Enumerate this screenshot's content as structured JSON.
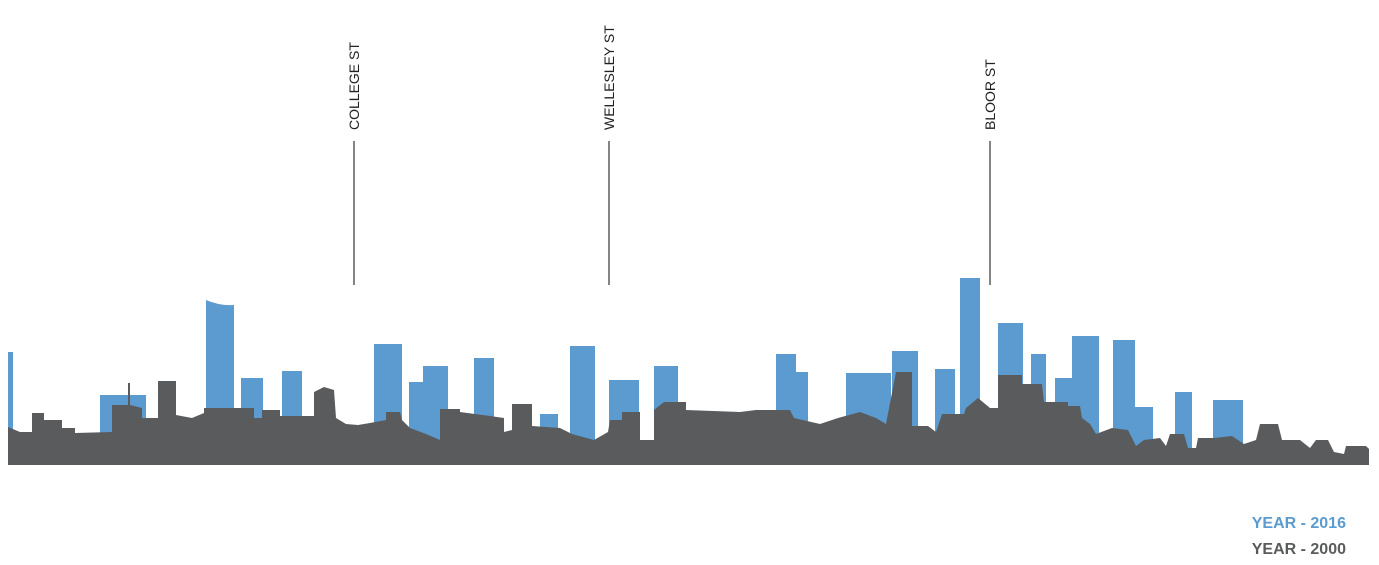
{
  "street_labels": [
    "COLLEGE ST",
    "WELLESLEY ST",
    "BLOOR ST"
  ],
  "legend": [
    {
      "label": "YEAR - 2016",
      "color": "#5b9bd0"
    },
    {
      "label": "YEAR - 2000",
      "color": "#5a5b5d"
    }
  ]
}
